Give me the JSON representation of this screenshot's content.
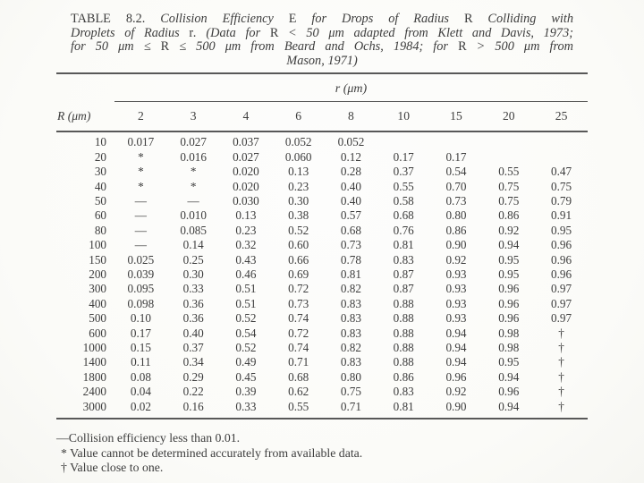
{
  "title": {
    "lines": [
      [
        {
          "t": "TABLE 8.2.",
          "s": "rm"
        },
        {
          "t": " Collision Efficiency ",
          "s": "it"
        },
        {
          "t": "E",
          "s": "rm"
        },
        {
          "t": " for Drops of Radius ",
          "s": "it"
        },
        {
          "t": "R",
          "s": "rm"
        },
        {
          "t": " Colliding with",
          "s": "it"
        }
      ],
      [
        {
          "t": "Droplets of Radius ",
          "s": "it"
        },
        {
          "t": "r",
          "s": "rm"
        },
        {
          "t": ". (Data for ",
          "s": "it"
        },
        {
          "t": "R",
          "s": "rm"
        },
        {
          "t": " < 50 μm adapted from Klett and Davis, 1973;",
          "s": "it"
        }
      ],
      [
        {
          "t": "for 50 μm ≤ ",
          "s": "it"
        },
        {
          "t": "R",
          "s": "rm"
        },
        {
          "t": " ≤ 500 μm from Beard and Ochs, 1984; for ",
          "s": "it"
        },
        {
          "t": "R",
          "s": "rm"
        },
        {
          "t": " > 500 μm from",
          "s": "it"
        }
      ],
      [
        {
          "t": "Mason, 1971)",
          "s": "it"
        }
      ]
    ]
  },
  "table": {
    "span_label": "r (μm)",
    "corner_label": "R (μm)",
    "columns": [
      "2",
      "3",
      "4",
      "6",
      "8",
      "10",
      "15",
      "20",
      "25"
    ],
    "rows": [
      {
        "r": "10",
        "values": [
          "0.017",
          "0.027",
          "0.037",
          "0.052",
          "0.052",
          "",
          "",
          "",
          ""
        ]
      },
      {
        "r": "20",
        "values": [
          "*",
          "0.016",
          "0.027",
          "0.060",
          "0.12",
          "0.17",
          "0.17",
          "",
          ""
        ]
      },
      {
        "r": "30",
        "values": [
          "*",
          "*",
          "0.020",
          "0.13",
          "0.28",
          "0.37",
          "0.54",
          "0.55",
          "0.47"
        ]
      },
      {
        "r": "40",
        "values": [
          "*",
          "*",
          "0.020",
          "0.23",
          "0.40",
          "0.55",
          "0.70",
          "0.75",
          "0.75"
        ]
      },
      {
        "r": "50",
        "values": [
          "—",
          "—",
          "0.030",
          "0.30",
          "0.40",
          "0.58",
          "0.73",
          "0.75",
          "0.79"
        ]
      },
      {
        "r": "60",
        "values": [
          "—",
          "0.010",
          "0.13",
          "0.38",
          "0.57",
          "0.68",
          "0.80",
          "0.86",
          "0.91"
        ]
      },
      {
        "r": "80",
        "values": [
          "—",
          "0.085",
          "0.23",
          "0.52",
          "0.68",
          "0.76",
          "0.86",
          "0.92",
          "0.95"
        ]
      },
      {
        "r": "100",
        "values": [
          "—",
          "0.14",
          "0.32",
          "0.60",
          "0.73",
          "0.81",
          "0.90",
          "0.94",
          "0.96"
        ]
      },
      {
        "r": "150",
        "values": [
          "0.025",
          "0.25",
          "0.43",
          "0.66",
          "0.78",
          "0.83",
          "0.92",
          "0.95",
          "0.96"
        ]
      },
      {
        "r": "200",
        "values": [
          "0.039",
          "0.30",
          "0.46",
          "0.69",
          "0.81",
          "0.87",
          "0.93",
          "0.95",
          "0.96"
        ]
      },
      {
        "r": "300",
        "values": [
          "0.095",
          "0.33",
          "0.51",
          "0.72",
          "0.82",
          "0.87",
          "0.93",
          "0.96",
          "0.97"
        ]
      },
      {
        "r": "400",
        "values": [
          "0.098",
          "0.36",
          "0.51",
          "0.73",
          "0.83",
          "0.88",
          "0.93",
          "0.96",
          "0.97"
        ]
      },
      {
        "r": "500",
        "values": [
          "0.10",
          "0.36",
          "0.52",
          "0.74",
          "0.83",
          "0.88",
          "0.93",
          "0.96",
          "0.97"
        ]
      },
      {
        "r": "600",
        "values": [
          "0.17",
          "0.40",
          "0.54",
          "0.72",
          "0.83",
          "0.88",
          "0.94",
          "0.98",
          "†"
        ]
      },
      {
        "r": "1000",
        "values": [
          "0.15",
          "0.37",
          "0.52",
          "0.74",
          "0.82",
          "0.88",
          "0.94",
          "0.98",
          "†"
        ]
      },
      {
        "r": "1400",
        "values": [
          "0.11",
          "0.34",
          "0.49",
          "0.71",
          "0.83",
          "0.88",
          "0.94",
          "0.95",
          "†"
        ]
      },
      {
        "r": "1800",
        "values": [
          "0.08",
          "0.29",
          "0.45",
          "0.68",
          "0.80",
          "0.86",
          "0.96",
          "0.94",
          "†"
        ]
      },
      {
        "r": "2400",
        "values": [
          "0.04",
          "0.22",
          "0.39",
          "0.62",
          "0.75",
          "0.83",
          "0.92",
          "0.96",
          "†"
        ]
      },
      {
        "r": "3000",
        "values": [
          "0.02",
          "0.16",
          "0.33",
          "0.55",
          "0.71",
          "0.81",
          "0.90",
          "0.94",
          "†"
        ]
      }
    ]
  },
  "footnotes": [
    "—Collision efficiency less than 0.01.",
    "* Value cannot be determined accurately from available data.",
    "† Value close to one."
  ]
}
